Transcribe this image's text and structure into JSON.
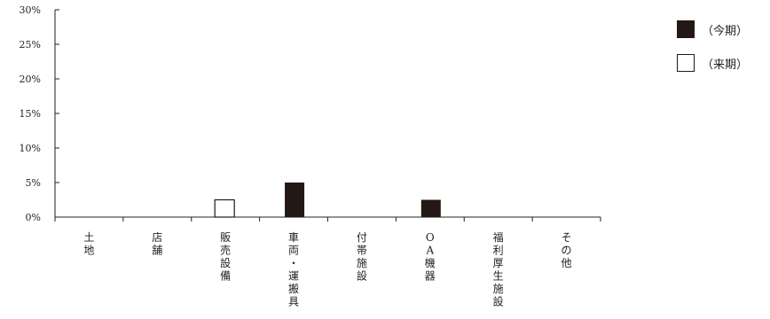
{
  "chart_data": {
    "type": "bar",
    "categories": [
      "土地",
      "店舗",
      "販売設備",
      "車両・運搬具",
      "付帯施設",
      "OA機器",
      "福利厚生施設",
      "その他"
    ],
    "series": [
      {
        "name": "（今期）",
        "values": [
          0,
          0,
          0,
          5,
          0,
          2.5,
          0,
          0
        ],
        "color": "#231815",
        "fill": "solid"
      },
      {
        "name": "（来期）",
        "values": [
          0,
          0,
          2.5,
          0,
          0,
          0,
          0,
          0
        ],
        "color": "#231815",
        "fill": "outline"
      }
    ],
    "yticks": [
      "0%",
      "5%",
      "10%",
      "15%",
      "20%",
      "25%",
      "30%"
    ],
    "ylim": [
      0,
      30
    ],
    "unit": "%",
    "legend_position": "top-right",
    "grid": false
  }
}
